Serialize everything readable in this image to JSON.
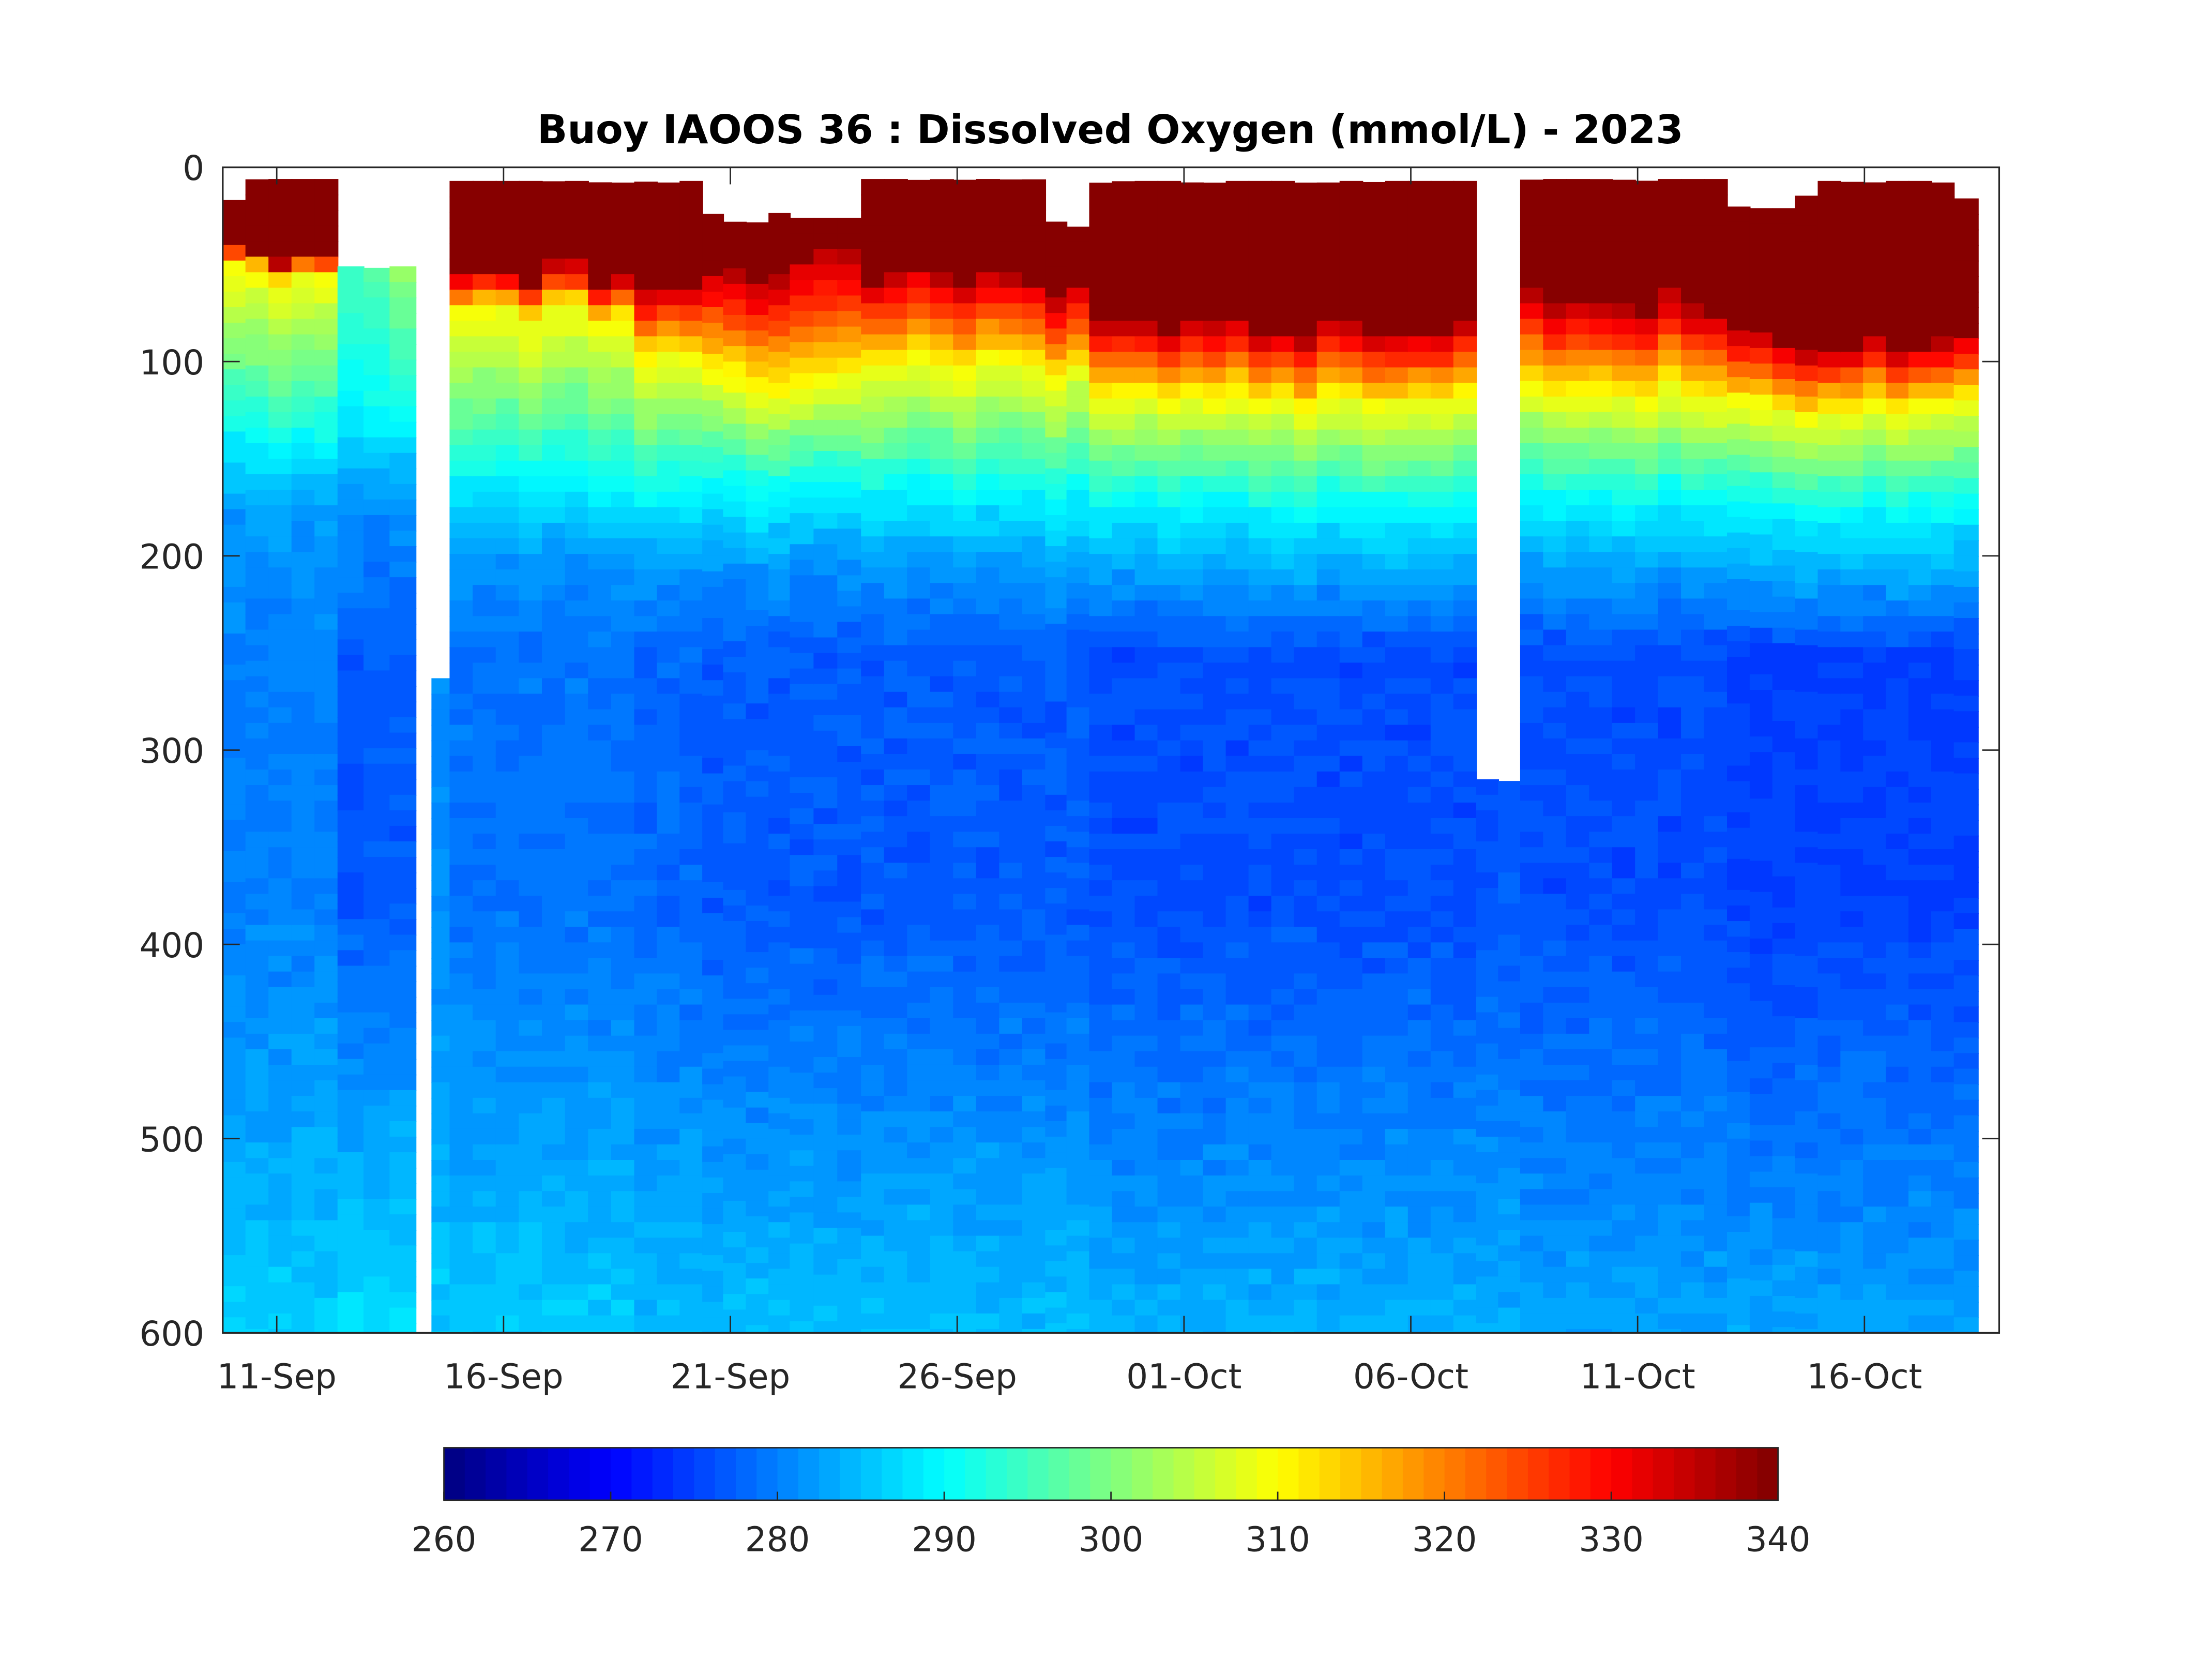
{
  "chart_data": {
    "type": "heatmap",
    "title": "Buoy IAOOS 36 : Dissolved Oxygen (mmol/L) - 2023",
    "xlabel": "",
    "ylabel": "",
    "x_unit": "day (1 = 01-Sep-2023)",
    "xlim": [
      9.81,
      48.97
    ],
    "ylim": [
      0,
      600
    ],
    "y_reversed": true,
    "x_ticks": [
      {
        "day": 11,
        "label": "11-Sep"
      },
      {
        "day": 16,
        "label": "16-Sep"
      },
      {
        "day": 21,
        "label": "21-Sep"
      },
      {
        "day": 26,
        "label": "26-Sep"
      },
      {
        "day": 31,
        "label": "01-Oct"
      },
      {
        "day": 36,
        "label": "06-Oct"
      },
      {
        "day": 41,
        "label": "11-Oct"
      },
      {
        "day": 46,
        "label": "16-Oct"
      }
    ],
    "y_ticks": [
      {
        "value": 0,
        "label": "0"
      },
      {
        "value": 100,
        "label": "100"
      },
      {
        "value": 200,
        "label": "200"
      },
      {
        "value": 300,
        "label": "300"
      },
      {
        "value": 400,
        "label": "400"
      },
      {
        "value": 500,
        "label": "500"
      },
      {
        "value": 600,
        "label": "600"
      }
    ],
    "colorbar": {
      "colormap": "jet",
      "levels": 64,
      "range": [
        260,
        340
      ],
      "ticks": [
        {
          "value": 260,
          "label": "260"
        },
        {
          "value": 270,
          "label": "270"
        },
        {
          "value": 280,
          "label": "280"
        },
        {
          "value": 290,
          "label": "290"
        },
        {
          "value": 300,
          "label": "300"
        },
        {
          "value": 310,
          "label": "310"
        },
        {
          "value": 320,
          "label": "320"
        },
        {
          "value": 330,
          "label": "330"
        },
        {
          "value": 340,
          "label": "340"
        }
      ],
      "placement": "bottom"
    },
    "profile_segments": [
      {
        "from": 9.81,
        "to": 10.31,
        "top": 16,
        "max_layer_bottom": 45,
        "oxycline_310": 55,
        "oxycline_290": 140,
        "mid_value": 280,
        "deep_value": 286
      },
      {
        "from": 10.31,
        "to": 12.34,
        "top": 6,
        "max_layer_bottom": 45,
        "oxycline_310": 55,
        "oxycline_290": 140,
        "mid_value": 280,
        "deep_value": 286
      },
      {
        "from": 12.34,
        "to": 14.06,
        "top": 51,
        "max_layer_bottom": 0,
        "oxycline_310": 0,
        "oxycline_290": 125,
        "mid_value": 277,
        "deep_value": 288
      },
      {
        "from": 14.41,
        "to": 14.81,
        "top": 263,
        "max_layer_bottom": 0,
        "oxycline_310": 0,
        "oxycline_290": 0,
        "mid_value": 281,
        "deep_value": 286
      },
      {
        "from": 14.81,
        "to": 18.88,
        "top": 7,
        "max_layer_bottom": 55,
        "oxycline_310": 75,
        "oxycline_290": 160,
        "mid_value": 279,
        "deep_value": 286
      },
      {
        "from": 18.88,
        "to": 20.38,
        "top": 7,
        "max_layer_bottom": 60,
        "oxycline_310": 95,
        "oxycline_290": 165,
        "mid_value": 278,
        "deep_value": 285
      },
      {
        "from": 20.38,
        "to": 20.84,
        "top": 24,
        "max_layer_bottom": 55,
        "oxycline_310": 105,
        "oxycline_290": 165,
        "mid_value": 277,
        "deep_value": 285
      },
      {
        "from": 20.84,
        "to": 21.84,
        "top": 28,
        "max_layer_bottom": 55,
        "oxycline_310": 110,
        "oxycline_290": 165,
        "mid_value": 277,
        "deep_value": 285
      },
      {
        "from": 21.84,
        "to": 22.31,
        "top": 23,
        "max_layer_bottom": 55,
        "oxycline_310": 110,
        "oxycline_290": 165,
        "mid_value": 277,
        "deep_value": 285
      },
      {
        "from": 22.31,
        "to": 23.88,
        "top": 26,
        "max_layer_bottom": 50,
        "oxycline_310": 112,
        "oxycline_290": 165,
        "mid_value": 277,
        "deep_value": 285
      },
      {
        "from": 23.88,
        "to": 27.94,
        "top": 6,
        "max_layer_bottom": 55,
        "oxycline_310": 100,
        "oxycline_290": 165,
        "mid_value": 277,
        "deep_value": 285
      },
      {
        "from": 27.94,
        "to": 28.41,
        "top": 27,
        "max_layer_bottom": 65,
        "oxycline_310": 105,
        "oxycline_290": 170,
        "mid_value": 277,
        "deep_value": 285
      },
      {
        "from": 28.41,
        "to": 28.91,
        "top": 30,
        "max_layer_bottom": 65,
        "oxycline_310": 105,
        "oxycline_290": 170,
        "mid_value": 277,
        "deep_value": 285
      },
      {
        "from": 28.91,
        "to": 37.44,
        "top": 7,
        "max_layer_bottom": 85,
        "oxycline_310": 120,
        "oxycline_290": 175,
        "mid_value": 276,
        "deep_value": 284
      },
      {
        "from": 37.44,
        "to": 38.41,
        "top": 315,
        "max_layer_bottom": 0,
        "oxycline_310": 0,
        "oxycline_290": 0,
        "mid_value": 277,
        "deep_value": 284
      },
      {
        "from": 38.41,
        "to": 42.97,
        "top": 6,
        "max_layer_bottom": 70,
        "oxycline_310": 115,
        "oxycline_290": 170,
        "mid_value": 276,
        "deep_value": 283
      },
      {
        "from": 42.97,
        "to": 43.47,
        "top": 20,
        "max_layer_bottom": 90,
        "oxycline_310": 125,
        "oxycline_290": 175,
        "mid_value": 275,
        "deep_value": 283
      },
      {
        "from": 43.47,
        "to": 44.47,
        "top": 21,
        "max_layer_bottom": 90,
        "oxycline_310": 125,
        "oxycline_290": 175,
        "mid_value": 275,
        "deep_value": 283
      },
      {
        "from": 44.47,
        "to": 44.97,
        "top": 14,
        "max_layer_bottom": 90,
        "oxycline_310": 125,
        "oxycline_290": 175,
        "mid_value": 275,
        "deep_value": 283
      },
      {
        "from": 44.97,
        "to": 47.97,
        "top": 7,
        "max_layer_bottom": 90,
        "oxycline_310": 122,
        "oxycline_290": 175,
        "mid_value": 275,
        "deep_value": 283
      },
      {
        "from": 47.97,
        "to": 48.5,
        "top": 16,
        "max_layer_bottom": 90,
        "oxycline_310": 122,
        "oxycline_290": 175,
        "mid_value": 275,
        "deep_value": 283
      }
    ]
  }
}
